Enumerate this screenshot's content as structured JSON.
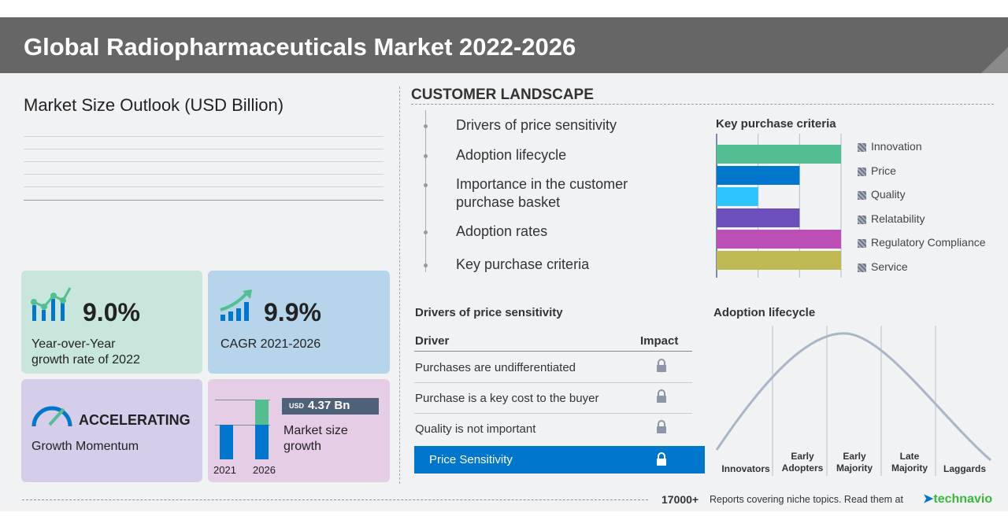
{
  "header": {
    "title": "Global Radiopharmaceuticals Market 2022-2026"
  },
  "market_size": {
    "title": "Market Size Outlook (USD Billion)"
  },
  "cards": {
    "yoy": {
      "value": "9.0%",
      "label1": "Year-over-Year",
      "label2": "growth rate of 2022",
      "icon": "bar-chart-trend-icon",
      "bg": "#c9e6dc"
    },
    "cagr": {
      "value": "9.9%",
      "label": "CAGR 2021-2026",
      "icon": "growth-arrow-icon",
      "bg": "#b6d4ea"
    },
    "momentum": {
      "value": "ACCELERATING",
      "label": "Growth Momentum",
      "icon": "speedometer-icon",
      "bg": "#d5cde9"
    },
    "growth": {
      "currency": "USD",
      "value": "4.37 Bn",
      "label1": "Market size",
      "label2": "growth",
      "year1": "2021",
      "year2": "2026",
      "bg": "#e5cde5"
    }
  },
  "customer": {
    "title": "CUSTOMER LANDSCAPE",
    "items": [
      "Drivers of price sensitivity",
      "Adoption lifecycle",
      "Importance in the customer purchase basket",
      "Adoption rates",
      "Key purchase criteria"
    ]
  },
  "chart_data": {
    "type": "bar",
    "orientation": "horizontal",
    "title": "Key purchase criteria",
    "categories": [
      "Innovation",
      "Price",
      "Quality",
      "Relatability",
      "Regulatory Compliance",
      "Service"
    ],
    "values": [
      3,
      2,
      1,
      2,
      3,
      3
    ],
    "xlim": [
      0,
      3
    ],
    "grid": true,
    "colors": [
      "#52be92",
      "#0077cc",
      "#2ec4ff",
      "#6c4fbd",
      "#bb4fb5",
      "#bfb953"
    ]
  },
  "drivers": {
    "title": "Drivers of price sensitivity",
    "col_driver": "Driver",
    "col_impact": "Impact",
    "rows": [
      {
        "label": "Purchases are undifferentiated",
        "icon": "lock-icon"
      },
      {
        "label": "Purchase is a key cost to the buyer",
        "icon": "lock-icon"
      },
      {
        "label": "Quality is not important",
        "icon": "lock-icon"
      }
    ],
    "highlight": {
      "label": "Price Sensitivity",
      "icon": "lock-icon",
      "color": "#0077cc"
    }
  },
  "adoption": {
    "title": "Adoption lifecycle",
    "stages": [
      [
        "Innovators"
      ],
      [
        "Early",
        "Adopters"
      ],
      [
        "Early",
        "Majority"
      ],
      [
        "Late",
        "Majority"
      ],
      [
        "Laggards"
      ]
    ]
  },
  "footer": {
    "count": "17000+",
    "text": "Reports covering niche topics. Read them at",
    "brand": "technavio"
  }
}
